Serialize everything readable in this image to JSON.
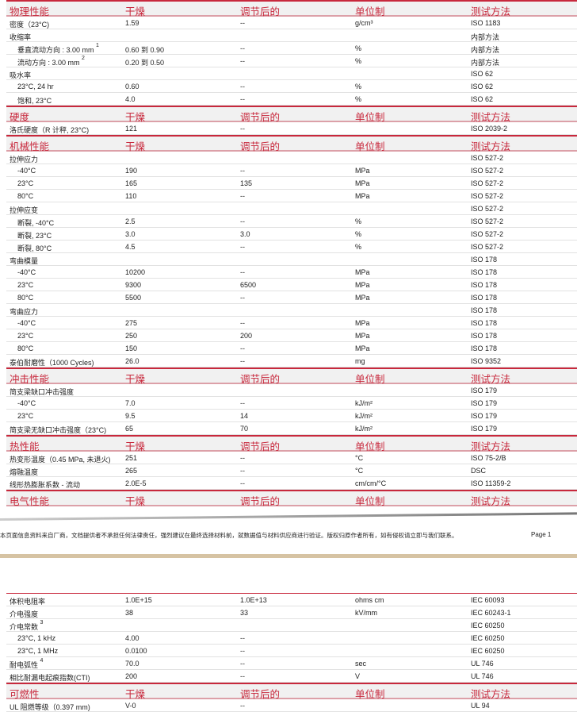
{
  "columns": {
    "dry": "干燥",
    "conditioned": "调节后的",
    "unit": "单位制",
    "test": "测试方法"
  },
  "page1_sections": [
    {
      "title": "物理性能",
      "rows": [
        {
          "label": "密度（23°C)",
          "dry": "1.59",
          "cond": "--",
          "unit": "g/cm³",
          "test": "ISO 1183"
        },
        {
          "label": "收缩率",
          "test": "内部方法"
        },
        {
          "label": "垂直流动方向 : 3.00 mm",
          "sup": "1",
          "indent": true,
          "dry": "0.60 到 0.90",
          "cond": "--",
          "unit": "%",
          "test": "内部方法"
        },
        {
          "label": "流动方向 : 3.00 mm",
          "sup": "2",
          "indent": true,
          "dry": "0.20 到 0.50",
          "cond": "--",
          "unit": "%",
          "test": "内部方法"
        },
        {
          "label": "吸水率",
          "test": "ISO 62"
        },
        {
          "label": "23°C, 24 hr",
          "indent": true,
          "dry": "0.60",
          "cond": "--",
          "unit": "%",
          "test": "ISO 62"
        },
        {
          "label": "饱和, 23°C",
          "indent": true,
          "dry": "4.0",
          "cond": "--",
          "unit": "%",
          "test": "ISO 62"
        }
      ]
    },
    {
      "title": "硬度",
      "rows": [
        {
          "label": "洛氏硬度（R 计秤, 23°C)",
          "dry": "121",
          "cond": "--",
          "test": "ISO 2039-2"
        }
      ]
    },
    {
      "title": "机械性能",
      "rows": [
        {
          "label": "拉伸应力",
          "test": "ISO 527-2"
        },
        {
          "label": "-40°C",
          "indent": true,
          "dry": "190",
          "cond": "--",
          "unit": "MPa",
          "test": "ISO 527-2"
        },
        {
          "label": "23°C",
          "indent": true,
          "dry": "165",
          "cond": "135",
          "unit": "MPa",
          "test": "ISO 527-2"
        },
        {
          "label": "80°C",
          "indent": true,
          "dry": "110",
          "cond": "--",
          "unit": "MPa",
          "test": "ISO 527-2"
        },
        {
          "label": "拉伸应变",
          "test": "ISO 527-2"
        },
        {
          "label": "断裂, -40°C",
          "indent": true,
          "dry": "2.5",
          "cond": "--",
          "unit": "%",
          "test": "ISO 527-2"
        },
        {
          "label": "断裂, 23°C",
          "indent": true,
          "dry": "3.0",
          "cond": "3.0",
          "unit": "%",
          "test": "ISO 527-2"
        },
        {
          "label": "断裂, 80°C",
          "indent": true,
          "dry": "4.5",
          "cond": "--",
          "unit": "%",
          "test": "ISO 527-2"
        },
        {
          "label": "弯曲模量",
          "test": "ISO 178"
        },
        {
          "label": "-40°C",
          "indent": true,
          "dry": "10200",
          "cond": "--",
          "unit": "MPa",
          "test": "ISO 178"
        },
        {
          "label": "23°C",
          "indent": true,
          "dry": "9300",
          "cond": "6500",
          "unit": "MPa",
          "test": "ISO 178"
        },
        {
          "label": "80°C",
          "indent": true,
          "dry": "5500",
          "cond": "--",
          "unit": "MPa",
          "test": "ISO 178"
        },
        {
          "label": "弯曲应力",
          "test": "ISO 178"
        },
        {
          "label": "-40°C",
          "indent": true,
          "dry": "275",
          "cond": "--",
          "unit": "MPa",
          "test": "ISO 178"
        },
        {
          "label": "23°C",
          "indent": true,
          "dry": "250",
          "cond": "200",
          "unit": "MPa",
          "test": "ISO 178"
        },
        {
          "label": "80°C",
          "indent": true,
          "dry": "150",
          "cond": "--",
          "unit": "MPa",
          "test": "ISO 178"
        },
        {
          "label": "泰伯耐磨性（1000 Cycles)",
          "dry": "26.0",
          "cond": "--",
          "unit": "mg",
          "test": "ISO 9352"
        }
      ]
    },
    {
      "title": "冲击性能",
      "rows": [
        {
          "label": "简支梁缺口冲击强度",
          "test": "ISO 179"
        },
        {
          "label": "-40°C",
          "indent": true,
          "dry": "7.0",
          "cond": "--",
          "unit": "kJ/m²",
          "test": "ISO 179"
        },
        {
          "label": "23°C",
          "indent": true,
          "dry": "9.5",
          "cond": "14",
          "unit": "kJ/m²",
          "test": "ISO 179"
        },
        {
          "label": "简支梁无缺口冲击强度（23°C)",
          "dry": "65",
          "cond": "70",
          "unit": "kJ/m²",
          "test": "ISO 179"
        }
      ]
    },
    {
      "title": "热性能",
      "rows": [
        {
          "label": "热变形温度（0.45 MPa, 未退火)",
          "dry": "251",
          "cond": "--",
          "unit": "°C",
          "test": "ISO 75-2/B"
        },
        {
          "label": "熔融温度",
          "dry": "265",
          "cond": "--",
          "unit": "°C",
          "test": "DSC"
        },
        {
          "label": "线形热膨胀系数 - 流动",
          "dry": "2.0E-5",
          "cond": "--",
          "unit": "cm/cm/°C",
          "test": "ISO 11359-2"
        }
      ]
    },
    {
      "title": "电气性能",
      "rows": []
    }
  ],
  "footer": {
    "disclaimer": "本页面信息资料来自厂商，文档提供者不承担任何法律责任，强烈建议在最终选择材料前，就数据值与材料供应商进行验证。版权归原作者所有，如有侵权请立即与我们联系。",
    "page": "Page 1"
  },
  "page2_sections": [
    {
      "title": "",
      "rows": [
        {
          "label": "体积电阻率",
          "dry": "1.0E+15",
          "cond": "1.0E+13",
          "unit": "ohms cm",
          "test": "IEC 60093"
        },
        {
          "label": "介电强度",
          "dry": "38",
          "cond": "33",
          "unit": "kV/mm",
          "test": "IEC 60243-1"
        },
        {
          "label": "介电常数",
          "sup": "3",
          "test": "IEC 60250"
        },
        {
          "label": "23°C, 1 kHz",
          "indent": true,
          "dry": "4.00",
          "cond": "--",
          "test": "IEC 60250"
        },
        {
          "label": "23°C, 1 MHz",
          "indent": true,
          "dry": "0.0100",
          "cond": "--",
          "test": "IEC 60250"
        },
        {
          "label": "耐电弧性",
          "sup": "4",
          "dry": "70.0",
          "cond": "--",
          "unit": "sec",
          "test": "UL 746"
        },
        {
          "label": "相比耐漏电起痕指数(CTI)",
          "dry": "200",
          "cond": "--",
          "unit": "V",
          "test": "UL 746"
        }
      ]
    },
    {
      "title": "可燃性",
      "rows": [
        {
          "label": "UL 阻燃等级（0.397 mm)",
          "dry": "V-0",
          "cond": "--",
          "test": "UL 94"
        }
      ]
    }
  ],
  "colors": {
    "header_text": "#c8283c",
    "header_bg": "#f1f1f1",
    "band": "#d6c3a3"
  }
}
